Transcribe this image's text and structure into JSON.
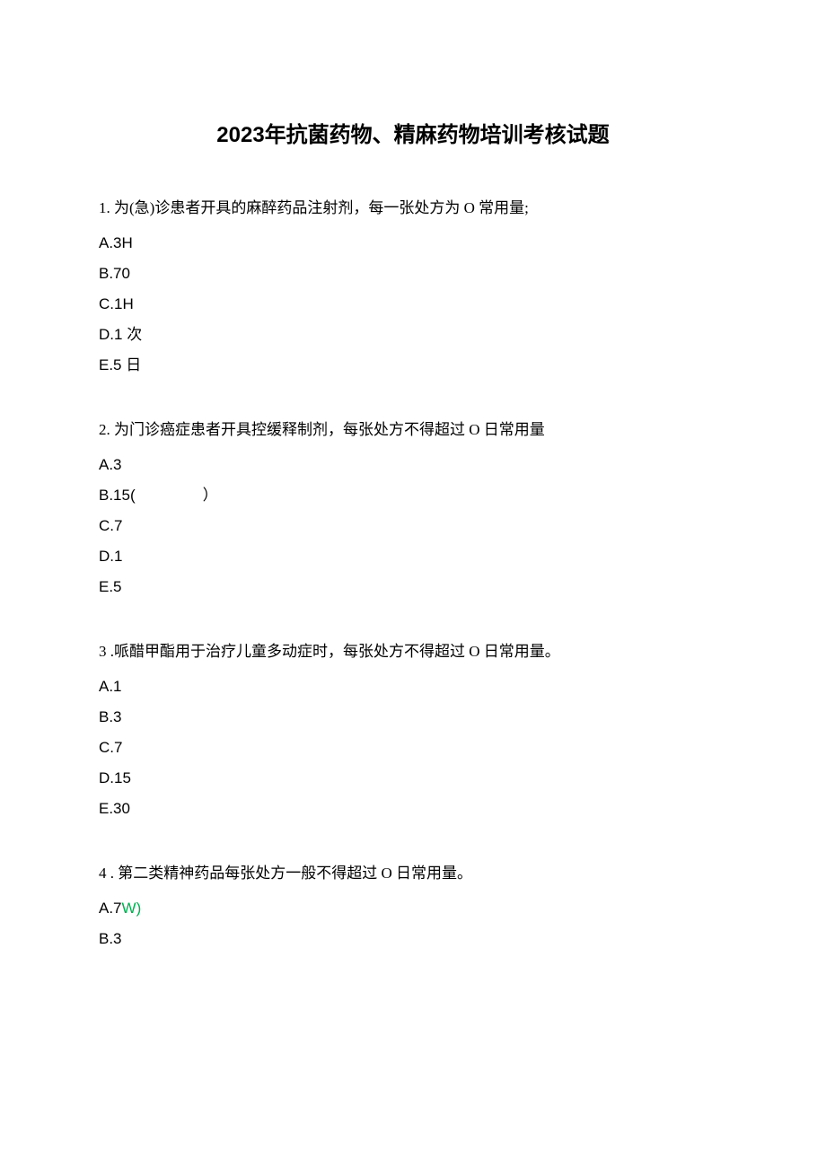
{
  "title": "2023年抗菌药物、精麻药物培训考核试题",
  "questions": [
    {
      "number": "1.",
      "text": "为(急)诊患者开具的麻醉药品注射剂，每一张处方为 O 常用量;",
      "options": [
        {
          "label": "A.3H",
          "suffix": "",
          "suffixColor": ""
        },
        {
          "label": "B.70",
          "suffix": "",
          "suffixColor": ""
        },
        {
          "label": "C.1H",
          "suffix": "",
          "suffixColor": ""
        },
        {
          "label": "D.1 次",
          "suffix": "",
          "suffixColor": ""
        },
        {
          "label": "E.5 日",
          "suffix": "",
          "suffixColor": ""
        }
      ]
    },
    {
      "number": "2.",
      "text": "为门诊癌症患者开具控缓释制剂，每张处方不得超过 O 日常用量",
      "options": [
        {
          "label": "A.3",
          "suffix": "",
          "suffixColor": ""
        },
        {
          "label": "B.15(",
          "suffix": "）",
          "suffixColor": ""
        },
        {
          "label": "C.7",
          "suffix": "",
          "suffixColor": ""
        },
        {
          "label": "D.1",
          "suffix": "",
          "suffixColor": ""
        },
        {
          "label": "E.5",
          "suffix": "",
          "suffixColor": ""
        }
      ]
    },
    {
      "number": "3",
      "text": " .哌醋甲酯用于治疗儿童多动症时，每张处方不得超过 O 日常用量。",
      "options": [
        {
          "label": "A.1",
          "suffix": "",
          "suffixColor": ""
        },
        {
          "label": "B.3",
          "suffix": "",
          "suffixColor": ""
        },
        {
          "label": "C.7",
          "suffix": "",
          "suffixColor": ""
        },
        {
          "label": "D.15",
          "suffix": "",
          "suffixColor": ""
        },
        {
          "label": "E.30",
          "suffix": "",
          "suffixColor": ""
        }
      ]
    },
    {
      "number": "4",
      "text": " . 第二类精神药品每张处方一般不得超过 O 日常用量。",
      "options": [
        {
          "label": "A.7",
          "suffix": "W)",
          "suffixColor": "#00b050"
        },
        {
          "label": "B.3",
          "suffix": "",
          "suffixColor": ""
        }
      ]
    }
  ]
}
